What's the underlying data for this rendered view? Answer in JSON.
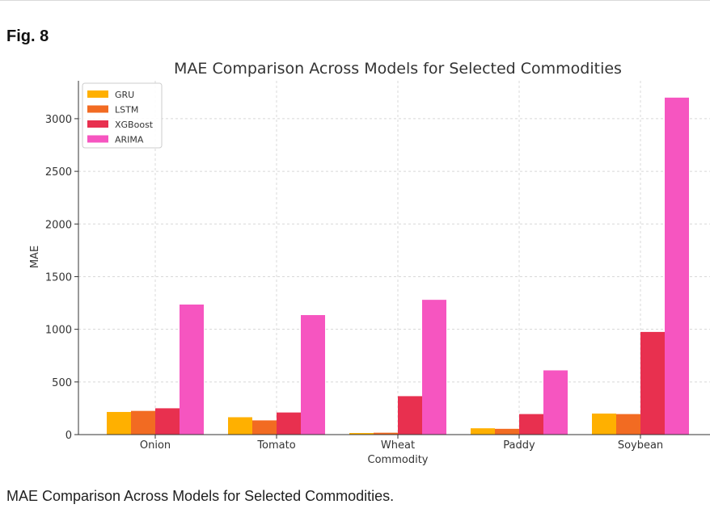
{
  "figure": {
    "label": "Fig. 8",
    "caption": "MAE Comparison Across Models for Selected Commodities."
  },
  "chart_data": {
    "type": "bar",
    "title": "MAE Comparison Across Models for Selected Commodities",
    "xlabel": "Commodity",
    "ylabel": "MAE",
    "categories": [
      "Onion",
      "Tomato",
      "Wheat",
      "Paddy",
      "Soybean"
    ],
    "series": [
      {
        "name": "GRU",
        "color": "#FFB000",
        "values": [
          215,
          165,
          15,
          60,
          200
        ]
      },
      {
        "name": "LSTM",
        "color": "#F26B22",
        "values": [
          225,
          135,
          18,
          55,
          195
        ]
      },
      {
        "name": "XGBoost",
        "color": "#E8304F",
        "values": [
          250,
          210,
          365,
          195,
          975
        ]
      },
      {
        "name": "ARIMA",
        "color": "#F655C0",
        "values": [
          1235,
          1135,
          1280,
          610,
          3200
        ]
      }
    ],
    "ylim": [
      0,
      3360
    ],
    "yticks": [
      0,
      500,
      1000,
      1500,
      2000,
      2500,
      3000
    ],
    "grid": true,
    "legend_position": "top-left"
  }
}
